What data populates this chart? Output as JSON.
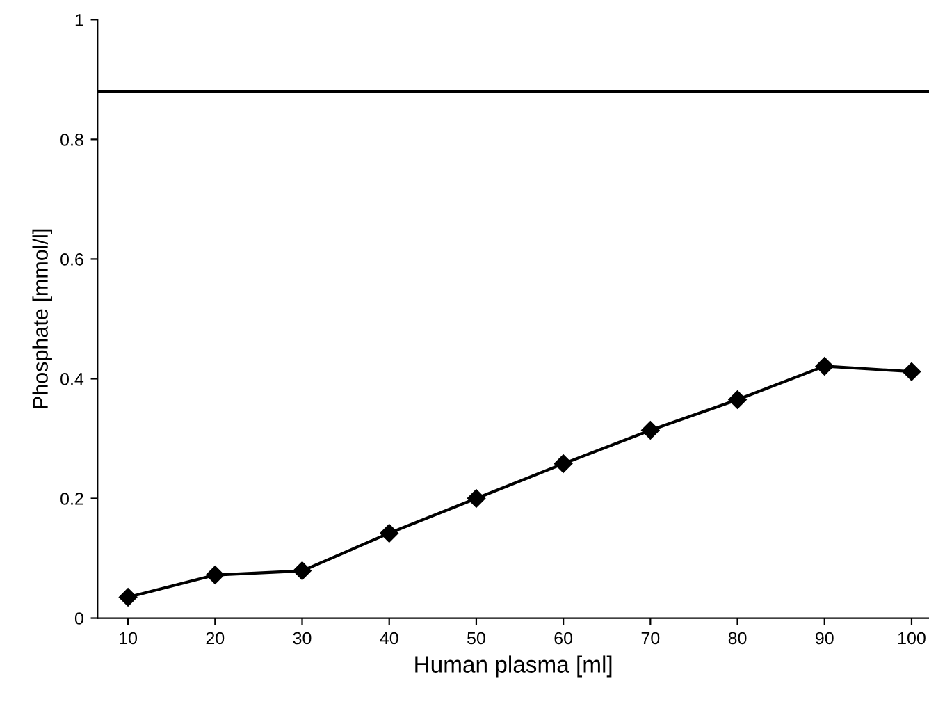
{
  "chart_data": {
    "type": "line",
    "xlabel": "Human plasma [ml]",
    "ylabel": "Phosphate [mmol/l]",
    "x": [
      10,
      20,
      30,
      40,
      50,
      60,
      70,
      80,
      90,
      100
    ],
    "series": [
      {
        "color": "#000000",
        "values": [
          0.035,
          0.072,
          0.079,
          0.142,
          0.2,
          0.258,
          0.314,
          0.365,
          0.421,
          0.412
        ]
      }
    ],
    "marker": "diamond",
    "xlim": [
      6.5,
      102
    ],
    "xticks": [
      10,
      20,
      30,
      40,
      50,
      60,
      70,
      80,
      90,
      100
    ],
    "ylim": [
      0,
      1
    ],
    "yticks": [
      0,
      0.2,
      0.4,
      0.6,
      0.8,
      1
    ],
    "ref_lines": [
      {
        "axis": "y",
        "value": 0.88,
        "color": "#000000"
      }
    ],
    "grid": false,
    "legend": false
  }
}
